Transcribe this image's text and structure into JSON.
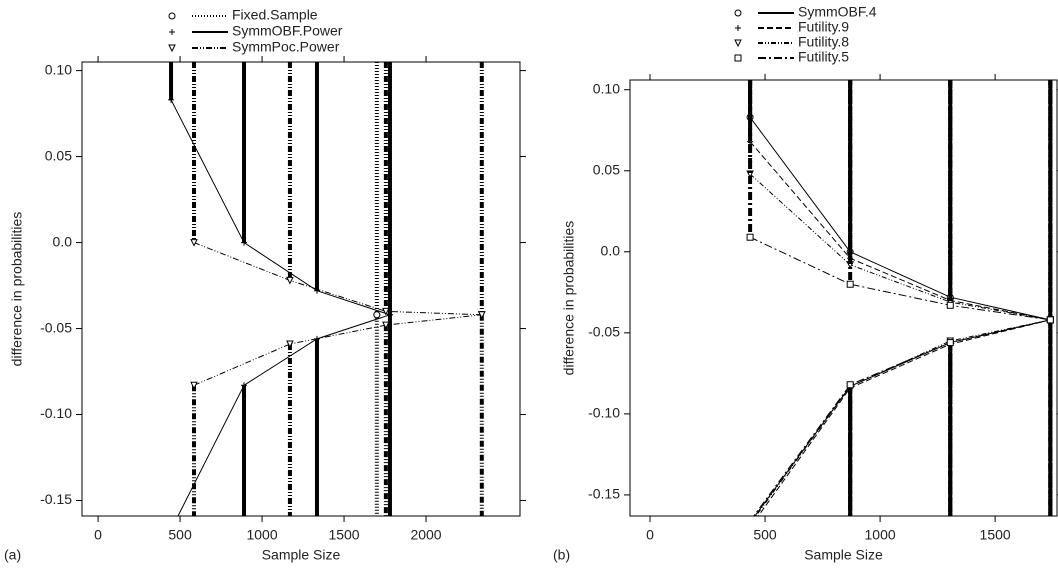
{
  "chart_data": [
    {
      "type": "line",
      "panel_label": "(a)",
      "x_label": "Sample Size",
      "y_label": "difference in probabilities",
      "xlim": [
        -98,
        2573
      ],
      "ylim": [
        -0.159,
        0.105
      ],
      "xticks": [
        0,
        500,
        1000,
        1500,
        2000
      ],
      "yticks": [
        {
          "value": 0.1,
          "label": "0.10"
        },
        0.05,
        {
          "value": 0,
          "label": "0.0"
        },
        -0.05,
        {
          "value": -0.1,
          "label": "-0.10"
        },
        -0.15
      ],
      "series": [
        {
          "name": "Fixed.Sample",
          "marker": "circle",
          "dash": "1,2",
          "x": [
            1700
          ],
          "upper": [
            -0.042
          ],
          "lower": [
            -0.042
          ]
        },
        {
          "name": "SymmOBF.Power",
          "marker": "plus",
          "dash": "none",
          "x": [
            445,
            890,
            1335,
            1780
          ],
          "upper": [
            0.083,
            0.0,
            -0.028,
            -0.042
          ],
          "lower": [
            -0.167,
            -0.083,
            -0.056,
            -0.042
          ]
        },
        {
          "name": "SymmPoc.Power",
          "marker": "triangle",
          "dash": "6,2,1,2,1,2",
          "x": [
            585,
            1170,
            1755,
            2340
          ],
          "upper": [
            0.0,
            -0.022,
            -0.04,
            -0.042
          ],
          "lower": [
            -0.083,
            -0.059,
            -0.048,
            -0.042
          ]
        }
      ]
    },
    {
      "type": "line",
      "panel_label": "(b)",
      "x_label": "Sample Size",
      "y_label": "difference in probabilities",
      "xlim": [
        -87,
        1769
      ],
      "ylim": [
        -0.163,
        0.106
      ],
      "xticks": [
        0,
        500,
        1000,
        1500
      ],
      "yticks": [
        {
          "value": 0.1,
          "label": "0.10"
        },
        0.05,
        {
          "value": 0,
          "label": "0.0"
        },
        -0.05,
        {
          "value": -0.1,
          "label": "-0.10"
        },
        -0.15
      ],
      "series": [
        {
          "name": "SymmOBF.4",
          "marker": "circle",
          "dash": "none",
          "x": [
            435,
            870,
            1305,
            1740
          ],
          "upper": [
            0.083,
            0.0,
            -0.028,
            -0.042
          ],
          "lower": [
            -0.167,
            -0.083,
            -0.056,
            -0.042
          ]
        },
        {
          "name": "Futility.9",
          "marker": "plus",
          "dash": "6,3",
          "x": [
            435,
            870,
            1305,
            1740
          ],
          "upper": [
            0.068,
            -0.004,
            -0.03,
            -0.042
          ],
          "lower": [
            -0.17,
            -0.084,
            -0.057,
            -0.042
          ]
        },
        {
          "name": "Futility.8",
          "marker": "triangle",
          "dash": "5,2,1,2,1,2",
          "x": [
            435,
            870,
            1305,
            1740
          ],
          "upper": [
            0.048,
            -0.008,
            -0.031,
            -0.042
          ],
          "lower": [
            -0.168,
            -0.083,
            -0.055,
            -0.042
          ]
        },
        {
          "name": "Futility.5",
          "marker": "square",
          "dash": "8,3,2,3",
          "x": [
            435,
            870,
            1305,
            1740
          ],
          "upper": [
            0.009,
            -0.02,
            -0.033,
            -0.042
          ],
          "lower": [
            -0.166,
            -0.082,
            -0.056,
            -0.042
          ]
        }
      ]
    }
  ]
}
